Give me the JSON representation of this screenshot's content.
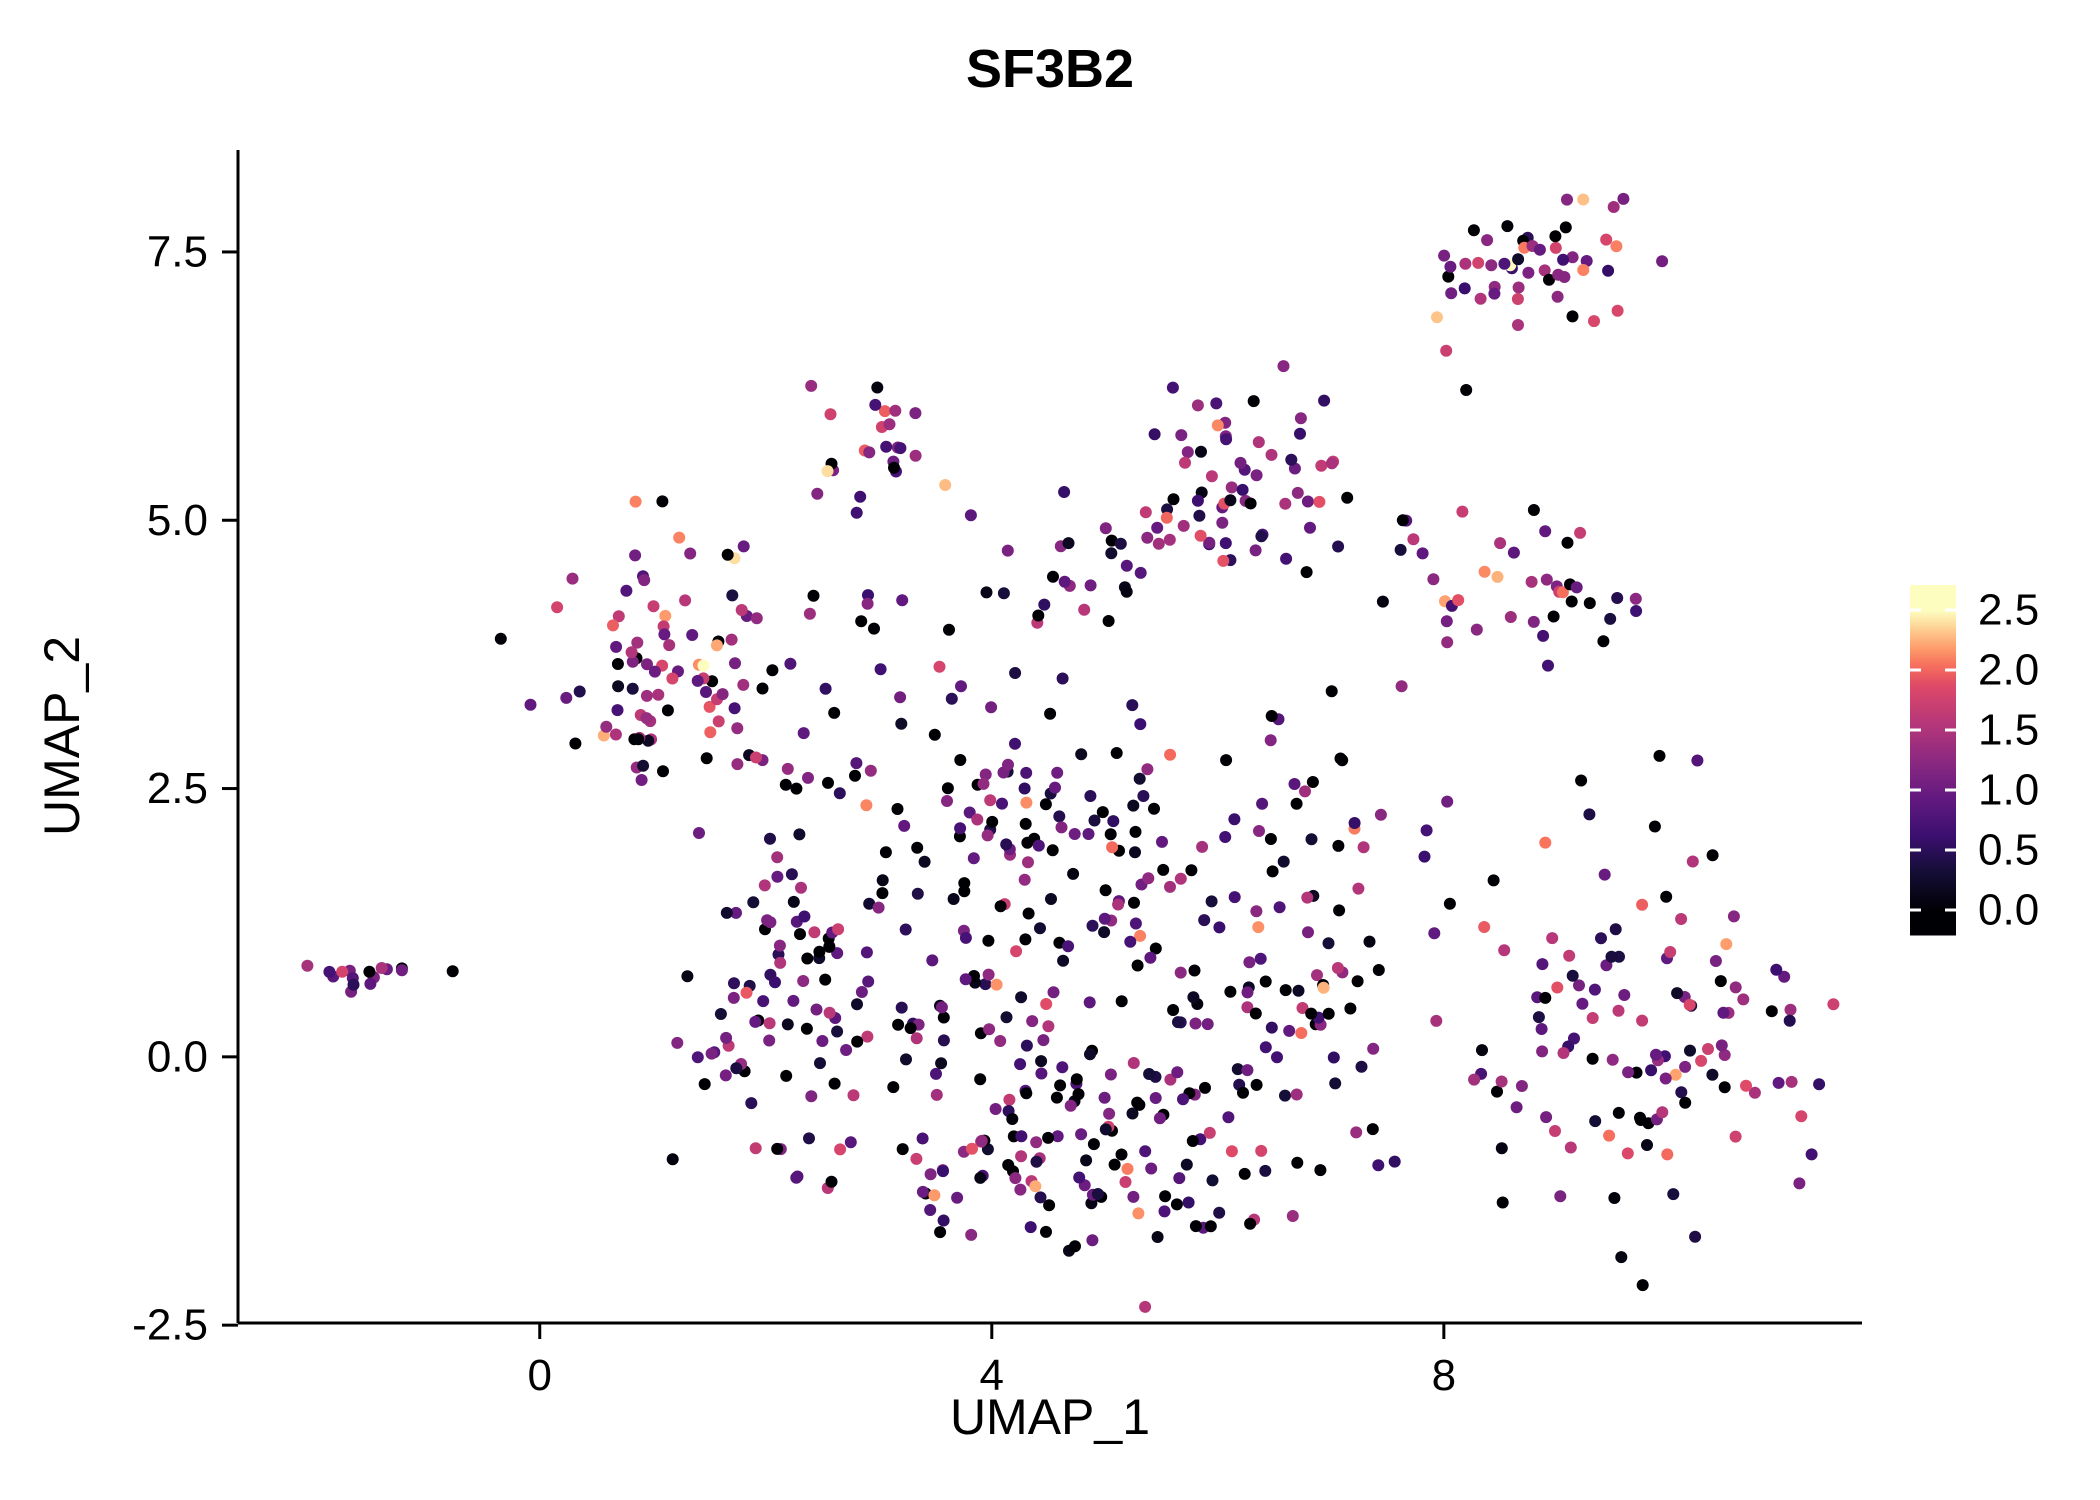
{
  "chart_data": {
    "type": "scatter",
    "title": "SF3B2",
    "xlabel": "UMAP_1",
    "ylabel": "UMAP_2",
    "xlim": [
      -2.67,
      11.7
    ],
    "ylim": [
      -2.48,
      8.45
    ],
    "x_ticks": [
      0,
      4,
      8
    ],
    "y_ticks": [
      -2.5,
      0.0,
      2.5,
      5.0,
      7.5
    ],
    "point_radius": 6,
    "grid": false,
    "background_color": "#ffffff",
    "axis_color": "#000000",
    "seed": 42,
    "legend": {
      "position": "right",
      "ticks": [
        0.0,
        0.5,
        1.0,
        1.5,
        2.0,
        2.5
      ],
      "range": [
        0,
        2.5
      ]
    },
    "colormap": {
      "name": "magma",
      "stops": [
        [
          0.0,
          "#000004"
        ],
        [
          0.13,
          "#140e36"
        ],
        [
          0.25,
          "#3b0f70"
        ],
        [
          0.38,
          "#641a80"
        ],
        [
          0.5,
          "#8c2981"
        ],
        [
          0.63,
          "#b73779"
        ],
        [
          0.75,
          "#de4968"
        ],
        [
          0.82,
          "#f7705c"
        ],
        [
          0.88,
          "#fe9f6d"
        ],
        [
          0.94,
          "#fecf92"
        ],
        [
          1.0,
          "#fcfdbf"
        ]
      ]
    },
    "clusters": [
      {
        "name": "top-right",
        "n": 48,
        "cx": 8.85,
        "cy": 7.45,
        "sx": 0.45,
        "sy": 0.27,
        "p0": 0.1,
        "mu": 1.35,
        "sigma": 0.6
      },
      {
        "name": "top-right-outliers",
        "n": 4,
        "cx": 8.05,
        "cy": 6.45,
        "sx": 0.55,
        "sy": 0.4,
        "p0": 0.0,
        "mu": 1.85,
        "sigma": 0.3
      },
      {
        "name": "top-middle",
        "n": 26,
        "cx": 2.95,
        "cy": 5.75,
        "sx": 0.33,
        "sy": 0.3,
        "p0": 0.08,
        "mu": 1.35,
        "sigma": 0.55
      },
      {
        "name": "upper-central",
        "n": 72,
        "cx": 6.05,
        "cy": 5.3,
        "sx": 0.55,
        "sy": 0.5,
        "p0": 0.12,
        "mu": 1.05,
        "sigma": 0.55
      },
      {
        "name": "bridge-left",
        "n": 10,
        "cx": 2.9,
        "cy": 4.15,
        "sx": 0.45,
        "sy": 0.25,
        "p0": 0.2,
        "mu": 1.0,
        "sigma": 0.5
      },
      {
        "name": "bridge-middle",
        "n": 18,
        "cx": 4.7,
        "cy": 4.35,
        "sx": 0.4,
        "sy": 0.22,
        "p0": 0.15,
        "mu": 0.9,
        "sigma": 0.45
      },
      {
        "name": "right-middle",
        "n": 40,
        "cx": 8.6,
        "cy": 4.35,
        "sx": 0.5,
        "sy": 0.33,
        "p0": 0.18,
        "mu": 1.05,
        "sigma": 0.55
      },
      {
        "name": "left",
        "n": 85,
        "cx": 1.15,
        "cy": 3.55,
        "sx": 0.55,
        "sy": 0.6,
        "p0": 0.15,
        "mu": 1.15,
        "sigma": 0.6
      },
      {
        "name": "far-left",
        "n": 16,
        "cx": -1.55,
        "cy": 0.72,
        "sx": 0.2,
        "sy": 0.11,
        "p0": 0.12,
        "mu": 1.25,
        "sigma": 0.5
      },
      {
        "name": "far-left-single",
        "n": 1,
        "cx": -0.77,
        "cy": 0.78,
        "sx": 0.01,
        "sy": 0.01,
        "p0": 1.0,
        "mu": 0.0,
        "sigma": 0.0
      },
      {
        "name": "central-upper",
        "n": 90,
        "cx": 4.3,
        "cy": 2.25,
        "sx": 1.3,
        "sy": 0.55,
        "p0": 0.25,
        "mu": 0.95,
        "sigma": 0.55
      },
      {
        "name": "central-middle",
        "n": 140,
        "cx": 4.6,
        "cy": 0.55,
        "sx": 1.5,
        "sy": 0.8,
        "p0": 0.25,
        "mu": 0.9,
        "sigma": 0.55
      },
      {
        "name": "central-bottom",
        "n": 110,
        "cx": 4.9,
        "cy": -1.0,
        "sx": 1.1,
        "sy": 0.55,
        "p0": 0.25,
        "mu": 0.9,
        "sigma": 0.55
      },
      {
        "name": "central-right-lobe",
        "n": 60,
        "cx": 6.6,
        "cy": 1.2,
        "sx": 0.6,
        "sy": 0.9,
        "p0": 0.22,
        "mu": 1.0,
        "sigma": 0.6
      },
      {
        "name": "central-left-lobe",
        "n": 70,
        "cx": 2.0,
        "cy": 0.55,
        "sx": 0.5,
        "sy": 0.8,
        "p0": 0.22,
        "mu": 0.95,
        "sigma": 0.55
      },
      {
        "name": "bottom-right",
        "n": 120,
        "cx": 9.7,
        "cy": 0.35,
        "sx": 0.8,
        "sy": 0.95,
        "p0": 0.18,
        "mu": 1.05,
        "sigma": 0.6
      },
      {
        "name": "sparse",
        "n": 14,
        "cx": 3.3,
        "cy": 3.3,
        "sx": 1.3,
        "sy": 0.5,
        "p0": 0.3,
        "mu": 0.9,
        "sigma": 0.5
      }
    ]
  }
}
